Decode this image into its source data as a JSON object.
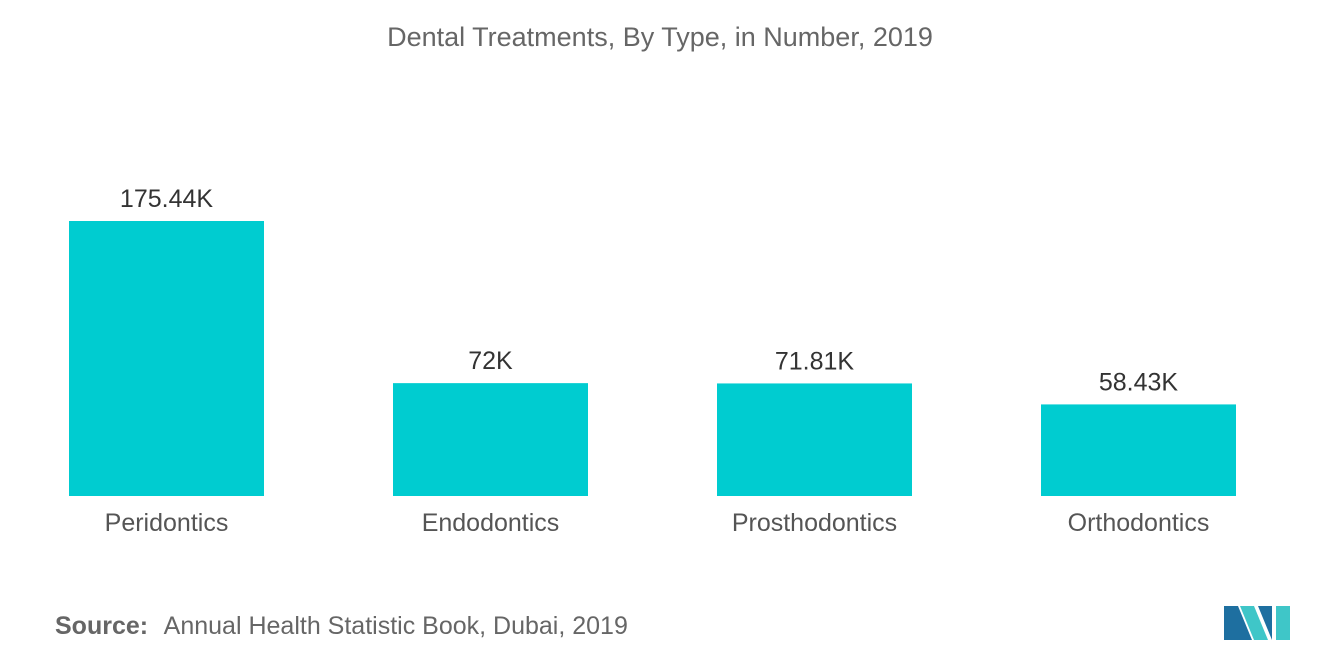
{
  "chart_data": {
    "type": "bar",
    "title": "Dental Treatments, By Type, in Number, 2019",
    "categories": [
      "Peridontics",
      "Endodontics",
      "Prosthodontics",
      "Orthodontics"
    ],
    "values": [
      175440,
      72000,
      71810,
      58430
    ],
    "value_labels": [
      "175.44K",
      "72K",
      "71.81K",
      "58.43K"
    ],
    "xlabel": "",
    "ylabel": "",
    "ylim": [
      0,
      175440
    ],
    "grid": false,
    "legend": "none",
    "bar_color": "#00CCD0"
  },
  "source": {
    "label": "Source:",
    "text": "Annual Health Statistic Book, Dubai, 2019"
  },
  "logo": {
    "icon": "mordor-intelligence-logo-icon",
    "colors": [
      "#1E6FA0",
      "#3FC6C8"
    ]
  }
}
